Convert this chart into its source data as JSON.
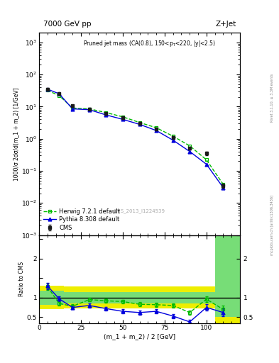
{
  "title_left": "7000 GeV pp",
  "title_right": "Z+Jet",
  "annotation": "Pruned jet mass (CA(0.8), 150<p$_T$<220, |y|<2.5)",
  "cms_label": "CMS_2013_I1224539",
  "ylabel_main": "1000/σ 2dσ/d(m_1 + m_2) [1/GeV]",
  "ylabel_ratio": "Ratio to CMS",
  "xlabel": "(m_1 + m_2) / 2 [GeV]",
  "right_label": "mcplots.cern.ch [arXiv:1306.3436]",
  "rivet_label": "Rivet 3.1.10, ≥ 3.3M events",
  "cms_x": [
    5,
    12,
    20,
    30,
    40,
    50,
    60,
    70,
    80,
    90,
    100,
    110
  ],
  "cms_y": [
    35,
    25,
    10.5,
    8.5,
    6.0,
    4.5,
    3.0,
    2.0,
    1.1,
    0.5,
    0.35,
    0.035
  ],
  "cms_yerr": [
    3,
    2,
    1.0,
    0.8,
    0.5,
    0.4,
    0.3,
    0.2,
    0.1,
    0.05,
    0.05,
    0.005
  ],
  "herwig_x": [
    5,
    12,
    20,
    30,
    40,
    50,
    60,
    70,
    80,
    90,
    100,
    110
  ],
  "herwig_y": [
    32,
    22,
    9.0,
    8.5,
    6.5,
    4.8,
    3.2,
    2.2,
    1.2,
    0.6,
    0.22,
    0.038
  ],
  "pythia_x": [
    5,
    12,
    20,
    30,
    40,
    50,
    60,
    70,
    80,
    90,
    100,
    110
  ],
  "pythia_y": [
    35,
    25,
    8.5,
    8.0,
    5.5,
    4.0,
    2.8,
    1.8,
    0.9,
    0.4,
    0.16,
    0.03
  ],
  "ratio_herwig_x": [
    5,
    12,
    20,
    30,
    40,
    50,
    60,
    70,
    80,
    90,
    100,
    110
  ],
  "ratio_herwig_y": [
    1.28,
    0.85,
    0.78,
    0.95,
    0.92,
    0.9,
    0.83,
    0.82,
    0.8,
    0.62,
    0.96,
    0.7
  ],
  "ratio_herwig_yerr": [
    0.08,
    0.06,
    0.05,
    0.05,
    0.05,
    0.05,
    0.05,
    0.05,
    0.05,
    0.05,
    0.08,
    0.1
  ],
  "ratio_pythia_x": [
    5,
    12,
    20,
    30,
    40,
    50,
    60,
    70,
    80,
    90,
    100,
    110
  ],
  "ratio_pythia_y": [
    1.3,
    0.97,
    0.75,
    0.8,
    0.72,
    0.65,
    0.62,
    0.65,
    0.53,
    0.38,
    0.75,
    0.62
  ],
  "ratio_pythia_yerr": [
    0.08,
    0.06,
    0.05,
    0.05,
    0.05,
    0.05,
    0.05,
    0.05,
    0.05,
    0.05,
    0.08,
    0.1
  ],
  "band_xedges": [
    0,
    15,
    30,
    55,
    75,
    90,
    105,
    120
  ],
  "band_yellow_low": [
    0.7,
    0.72,
    0.72,
    0.72,
    0.72,
    0.72,
    0.35,
    0.35
  ],
  "band_yellow_high": [
    1.3,
    1.28,
    1.28,
    1.28,
    1.28,
    1.28,
    2.6,
    2.6
  ],
  "band_green_low": [
    0.82,
    0.85,
    0.85,
    0.85,
    0.85,
    0.85,
    0.5,
    0.5
  ],
  "band_green_high": [
    1.18,
    1.15,
    1.15,
    1.15,
    1.15,
    1.15,
    2.6,
    2.6
  ],
  "ylim_main": [
    0.001,
    2000
  ],
  "ylim_ratio": [
    0.35,
    2.6
  ],
  "xlim": [
    0,
    120
  ],
  "color_cms": "#1a1a1a",
  "color_herwig": "#00bb00",
  "color_pythia": "#0000dd",
  "color_band_yellow": "#eeee00",
  "color_band_green": "#77dd77",
  "color_last_green": "#55cc55"
}
